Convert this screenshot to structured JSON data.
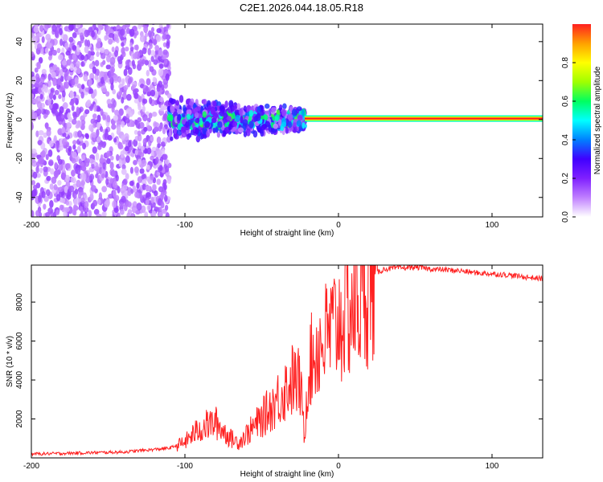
{
  "title": "C2E1.2026.044.18.05.R18",
  "chart_data": [
    {
      "type": "heatmap",
      "xlabel": "Height of straight line (km)",
      "ylabel": "Frequency (Hz)",
      "xlim": [
        -200,
        133
      ],
      "ylim": [
        -50,
        49
      ],
      "xticks": [
        -200,
        -100,
        0,
        100
      ],
      "xtick_labels": [
        "-200",
        "-100",
        "0",
        "100"
      ],
      "yticks": [
        -40,
        -20,
        0,
        20,
        40
      ],
      "ytick_labels": [
        "-40",
        "-20",
        "0",
        "20",
        "40"
      ],
      "colorbar": {
        "label": "Normalized spectral amplitude",
        "range": [
          0,
          1
        ],
        "ticks": [
          0.0,
          0.2,
          0.4,
          0.6,
          0.8
        ],
        "tick_labels": [
          "0.0",
          "0.2",
          "0.4",
          "0.6",
          "0.8"
        ],
        "colors": [
          "#ffffff",
          "#c080ff",
          "#8020ff",
          "#4000ff",
          "#0080ff",
          "#00ffff",
          "#00ff60",
          "#a0ff00",
          "#ffff00",
          "#ffa000",
          "#ff2020"
        ]
      },
      "regions": [
        {
          "name": "broadband noise",
          "x_range": [
            -200,
            -110
          ],
          "freq_half_width": 50,
          "amplitude": 0.15
        },
        {
          "name": "transition cluster",
          "x_range": [
            -110,
            -22
          ],
          "freq_half_width": 10,
          "amplitude": 0.3
        },
        {
          "name": "carrier line",
          "x_range": [
            -22,
            133
          ],
          "freq_center": 0.5,
          "amplitude": 1.0
        }
      ]
    },
    {
      "type": "line",
      "xlabel": "Height of straight line (km)",
      "ylabel": "SNR (10 * v/v)",
      "xlim": [
        -200,
        133
      ],
      "ylim": [
        0,
        9900
      ],
      "xticks": [
        -200,
        -100,
        0,
        100
      ],
      "xtick_labels": [
        "-200",
        "-100",
        "0",
        "100"
      ],
      "yticks": [
        2000,
        4000,
        6000,
        8000
      ],
      "ytick_labels": [
        "2000",
        "4000",
        "6000",
        "8000"
      ],
      "color": "#ff2020",
      "series": [
        {
          "name": "SNR",
          "x": [
            -200,
            -180,
            -160,
            -140,
            -125,
            -110,
            -100,
            -95,
            -90,
            -85,
            -80,
            -75,
            -70,
            -65,
            -60,
            -55,
            -50,
            -45,
            -40,
            -35,
            -30,
            -25,
            -22,
            -20,
            -15,
            -10,
            -5,
            0,
            5,
            10,
            15,
            20,
            25,
            30,
            40,
            50,
            60,
            70,
            80,
            90,
            100,
            110,
            120,
            133
          ],
          "y": [
            200,
            230,
            270,
            300,
            400,
            500,
            800,
            1200,
            1500,
            1700,
            1800,
            1400,
            1000,
            800,
            1200,
            1600,
            2000,
            2500,
            3000,
            3500,
            4000,
            3800,
            1000,
            4500,
            5500,
            6000,
            6500,
            7000,
            7500,
            7800,
            8500,
            9200,
            9500,
            9700,
            9750,
            9800,
            9700,
            9650,
            9600,
            9500,
            9450,
            9400,
            9300,
            9200
          ]
        }
      ]
    }
  ]
}
